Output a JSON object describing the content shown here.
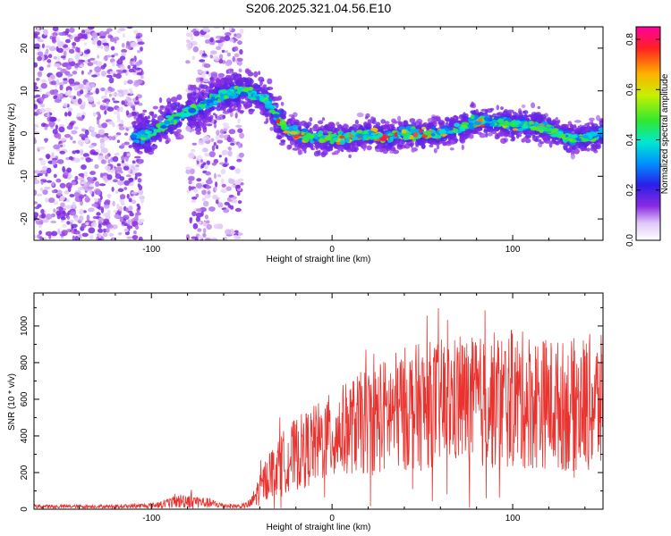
{
  "title": "S206.2025.321.04.56.E10",
  "chart_data": [
    {
      "type": "heatmap",
      "name": "spectrogram",
      "xlabel": "Height of straight line (km)",
      "ylabel": "Frequency (Hz)",
      "xlim": [
        -165,
        150
      ],
      "ylim": [
        -25,
        25
      ],
      "xticks": [
        -100,
        0,
        100
      ],
      "yticks": [
        -20,
        -10,
        0,
        10,
        20
      ],
      "colorbar": {
        "label": "Normalized spectral amplitude",
        "range": [
          0,
          0.85
        ],
        "ticks": [
          0,
          0.2,
          0.4,
          0.6,
          0.8
        ],
        "tick_labels": [
          "0.0",
          "0.2",
          "0.4",
          "0.6",
          "0.8"
        ]
      },
      "ridge": {
        "x": [
          -110,
          -100,
          -90,
          -80,
          -70,
          -60,
          -50,
          -40,
          -35,
          -30,
          -25,
          -20,
          -10,
          0,
          10,
          20,
          30,
          40,
          50,
          60,
          70,
          80,
          90,
          100,
          110,
          120,
          130,
          140,
          150
        ],
        "freq": [
          -1,
          0,
          3,
          5,
          7,
          9,
          10,
          9,
          7,
          4,
          1,
          0,
          -1,
          -1,
          -1,
          0,
          -1,
          0,
          0,
          0,
          1,
          3,
          3,
          2,
          2,
          1,
          -1,
          -1,
          0
        ]
      },
      "noise_regions_x": [
        [
          -165,
          -105
        ],
        [
          -80,
          -50
        ]
      ]
    },
    {
      "type": "line",
      "name": "snr",
      "xlabel": "Height of straight line (km)",
      "ylabel": "SNR (10 * v/v)",
      "xlim": [
        -165,
        150
      ],
      "ylim": [
        0,
        1180
      ],
      "xticks": [
        -100,
        0,
        100
      ],
      "yticks": [
        0,
        200,
        400,
        600,
        800,
        1000
      ],
      "color": "#e8332f",
      "envelope": {
        "x": [
          -165,
          -120,
          -100,
          -90,
          -80,
          -70,
          -60,
          -50,
          -45,
          -40,
          -35,
          -30,
          -20,
          -10,
          0,
          10,
          20,
          30,
          40,
          50,
          60,
          70,
          80,
          90,
          100,
          110,
          120,
          130,
          140,
          150
        ],
        "mean": [
          15,
          15,
          20,
          35,
          50,
          35,
          20,
          15,
          30,
          110,
          190,
          240,
          300,
          350,
          400,
          450,
          480,
          510,
          550,
          560,
          580,
          590,
          580,
          590,
          600,
          590,
          580,
          560,
          580,
          570
        ],
        "amplitude": [
          10,
          10,
          15,
          30,
          45,
          30,
          15,
          10,
          30,
          90,
          130,
          160,
          200,
          220,
          240,
          260,
          300,
          320,
          340,
          350,
          350,
          360,
          360,
          380,
          380,
          380,
          360,
          360,
          380,
          380
        ]
      }
    }
  ]
}
